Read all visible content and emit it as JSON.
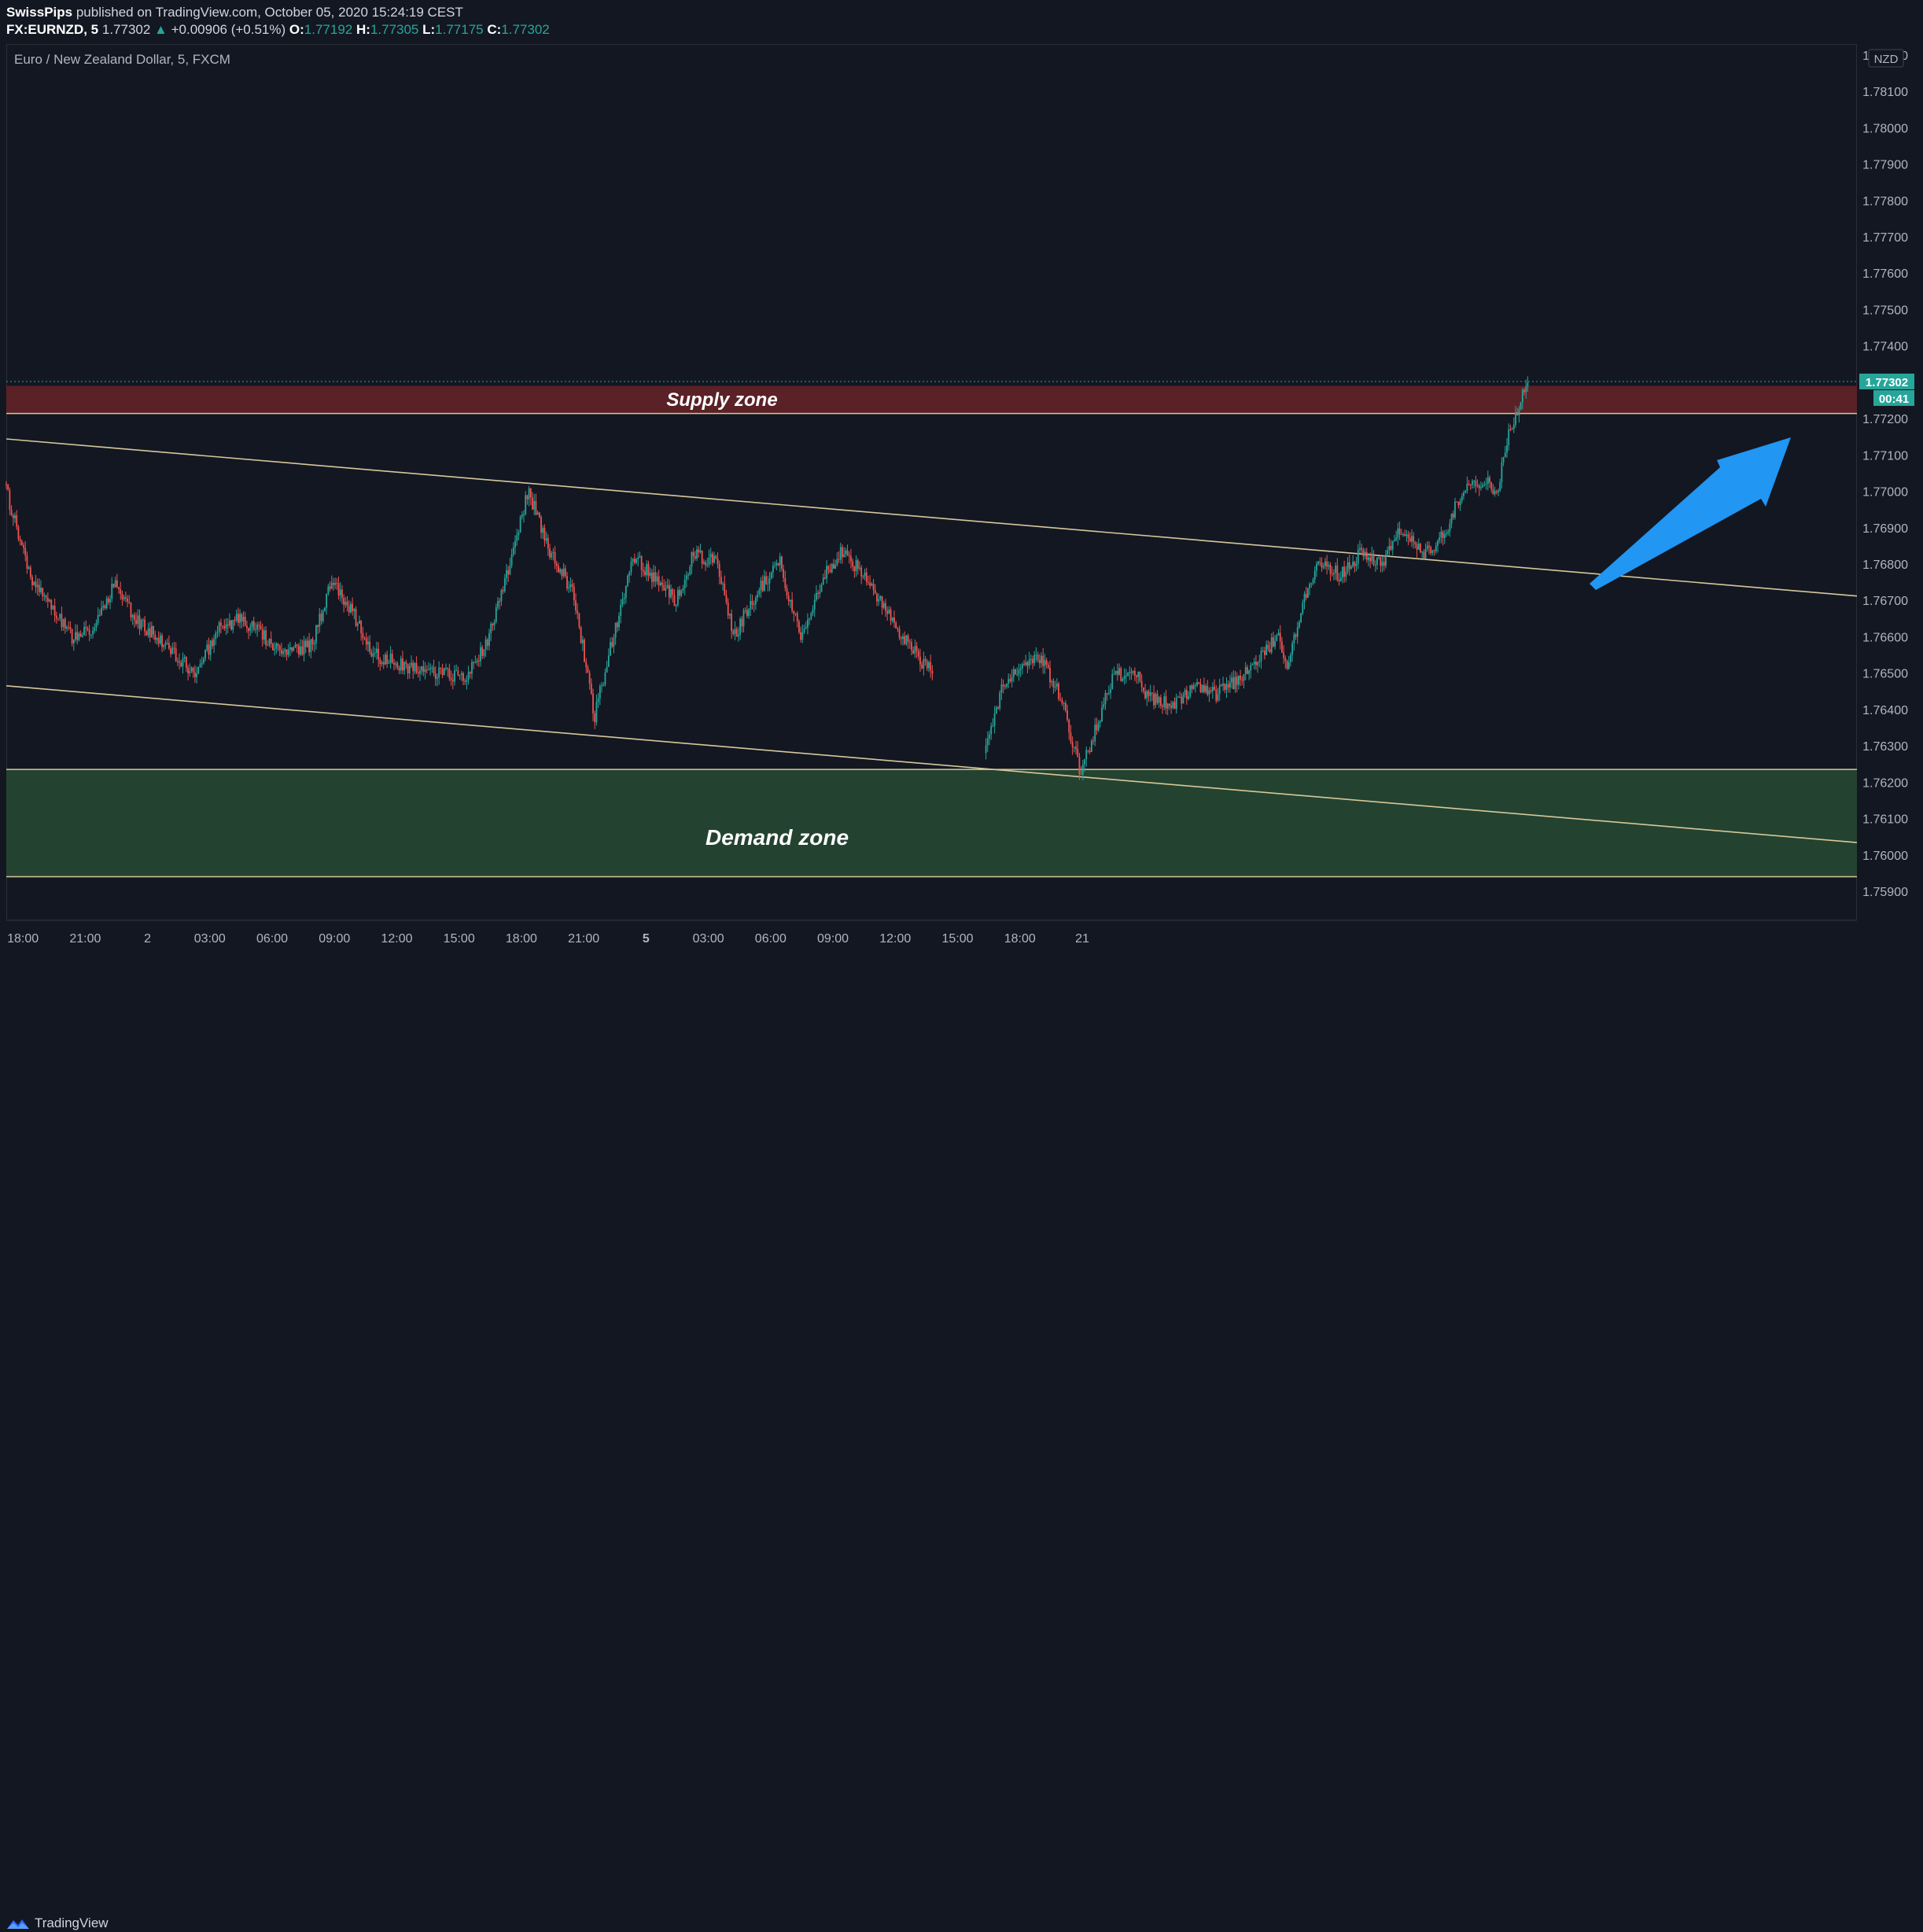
{
  "header": {
    "author": "SwissPips",
    "published_text": " published on TradingView.com, October 05, 2020 15:24:19 CEST",
    "symbol": "FX:EURNZD, 5",
    "price": "1.77302",
    "change": "+0.00906 (+0.51%)",
    "o_label": "O:",
    "o_value": "1.77192",
    "h_label": "H:",
    "h_value": "1.77305",
    "l_label": "L:",
    "l_value": "1.77175",
    "c_label": "C:",
    "c_value": "1.77302"
  },
  "chart_title": "Euro / New Zealand Dollar, 5, FXCM",
  "currency_badge": "NZD",
  "last_price_label": "1.77302",
  "countdown_label": "00:41",
  "footer_brand": "TradingView",
  "colors": {
    "background": "#131722",
    "up": "#26a69a",
    "down": "#ef5350",
    "supply": "#5a2127",
    "demand": "#244230",
    "channel": "#d6c89a",
    "arrow": "#2196f3",
    "axis_text": "#b2b5be"
  },
  "chart_data": {
    "type": "candlestick",
    "x_ticks": [
      "18:00",
      "21:00",
      "2",
      "03:00",
      "06:00",
      "09:00",
      "12:00",
      "15:00",
      "18:00",
      "21:00",
      "5",
      "03:00",
      "06:00",
      "09:00",
      "12:00",
      "15:00",
      "18:00",
      "21"
    ],
    "y_ticks": [
      "1.78200",
      "1.78100",
      "1.78000",
      "1.77900",
      "1.77800",
      "1.77700",
      "1.77600",
      "1.77500",
      "1.77400",
      "1.77300",
      "1.77200",
      "1.77100",
      "1.77000",
      "1.76900",
      "1.76800",
      "1.76700",
      "1.76600",
      "1.76500",
      "1.76400",
      "1.76300",
      "1.76200",
      "1.76100",
      "1.76000",
      "1.75900"
    ],
    "y_values": [
      1.782,
      1.781,
      1.78,
      1.779,
      1.778,
      1.777,
      1.776,
      1.775,
      1.774,
      1.773,
      1.772,
      1.771,
      1.77,
      1.769,
      1.768,
      1.767,
      1.766,
      1.765,
      1.764,
      1.763,
      1.762,
      1.761,
      1.76,
      1.759
    ],
    "ylim": [
      1.7582,
      1.7823
    ],
    "xlim_hours": [
      -30.8,
      58.3
    ],
    "tick_hours": [
      -30,
      -27,
      -24,
      -21,
      -18,
      -15,
      -12,
      -9,
      -6,
      -3,
      0,
      3,
      6,
      9,
      12,
      15,
      18,
      21
    ],
    "supply_zone": {
      "label": "Supply zone",
      "from": 1.77214,
      "to": 1.7729
    },
    "demand_zone": {
      "label": "Demand zone",
      "from": 1.7594,
      "to": 1.76235
    },
    "channel_upper": [
      [
        -30.8,
        1.77144
      ],
      [
        58.3,
        1.76712
      ]
    ],
    "channel_lower": [
      [
        -30.8,
        1.76465
      ],
      [
        58.3,
        1.76034
      ]
    ],
    "last_price": 1.77302,
    "path": [
      [
        -30.8,
        1.7702
      ],
      [
        -29.5,
        1.7675
      ],
      [
        -28.5,
        1.7668
      ],
      [
        -27.5,
        1.7659
      ],
      [
        -26.5,
        1.7663
      ],
      [
        -25.5,
        1.7675
      ],
      [
        -24.5,
        1.7665
      ],
      [
        -23.5,
        1.766
      ],
      [
        -22.6,
        1.7655
      ],
      [
        -21.6,
        1.765
      ],
      [
        -20.5,
        1.7662
      ],
      [
        -19.5,
        1.7665
      ],
      [
        -18.5,
        1.7661
      ],
      [
        -17.5,
        1.7655
      ],
      [
        -16.0,
        1.7658
      ],
      [
        -15.0,
        1.7676
      ],
      [
        -14.0,
        1.7666
      ],
      [
        -13.0,
        1.7655
      ],
      [
        -11.5,
        1.7652
      ],
      [
        -10.0,
        1.765
      ],
      [
        -8.5,
        1.7649
      ],
      [
        -7.5,
        1.766
      ],
      [
        -6.5,
        1.768
      ],
      [
        -5.6,
        1.77
      ],
      [
        -4.5,
        1.7683
      ],
      [
        -3.4,
        1.7672
      ],
      [
        -2.4,
        1.7638
      ],
      [
        -1.5,
        1.766
      ],
      [
        -0.5,
        1.7682
      ],
      [
        0.5,
        1.7676
      ],
      [
        1.5,
        1.767
      ],
      [
        2.4,
        1.7683
      ],
      [
        3.5,
        1.768
      ],
      [
        4.3,
        1.766
      ],
      [
        5.2,
        1.767
      ],
      [
        6.5,
        1.7681
      ],
      [
        7.5,
        1.766
      ],
      [
        8.5,
        1.7675
      ],
      [
        9.5,
        1.7684
      ],
      [
        10.5,
        1.7677
      ],
      [
        11.5,
        1.7668
      ],
      [
        12.5,
        1.766
      ],
      [
        13.5,
        1.7652
      ],
      [
        14.5,
        1.7648
      ],
      [
        15.5,
        1.764
      ],
      [
        16.3,
        1.7628
      ],
      [
        17.2,
        1.7645
      ],
      [
        18.0,
        1.7651
      ],
      [
        19.0,
        1.7655
      ],
      [
        20.0,
        1.7644
      ],
      [
        21.0,
        1.7623
      ],
      [
        21.5,
        1.7631
      ],
      [
        22.5,
        1.7648
      ],
      [
        23.5,
        1.7652
      ],
      [
        24.3,
        1.7643
      ],
      [
        25.5,
        1.7641
      ],
      [
        26.5,
        1.7646
      ],
      [
        27.5,
        1.7644
      ],
      [
        28.5,
        1.7648
      ],
      [
        29.5,
        1.7653
      ],
      [
        30.5,
        1.766
      ],
      [
        31.0,
        1.7652
      ],
      [
        31.7,
        1.767
      ],
      [
        32.5,
        1.768
      ],
      [
        33.5,
        1.7677
      ],
      [
        34.5,
        1.7683
      ],
      [
        35.5,
        1.768
      ],
      [
        36.5,
        1.769
      ],
      [
        37.5,
        1.7682
      ],
      [
        38.5,
        1.7688
      ],
      [
        39.5,
        1.7702
      ],
      [
        40.5,
        1.7703
      ],
      [
        41.0,
        1.7699
      ],
      [
        41.6,
        1.7715
      ],
      [
        42.2,
        1.7725
      ],
      [
        42.5,
        1.773
      ]
    ]
  },
  "annotation": {
    "type": "arrow",
    "direction": "up-right"
  }
}
